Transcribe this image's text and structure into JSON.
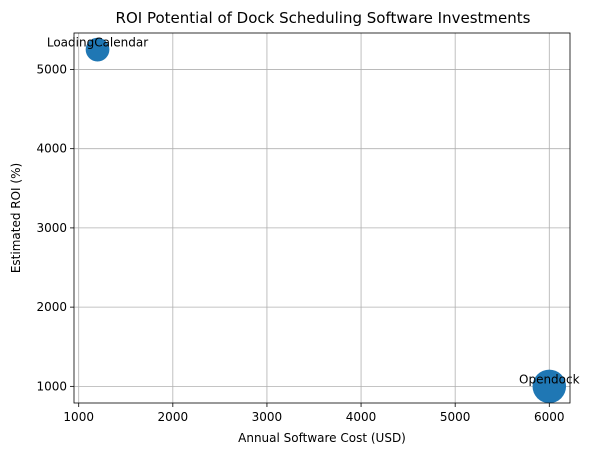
{
  "chart_data": {
    "type": "scatter",
    "title": "ROI Potential of Dock Scheduling Software Investments",
    "xlabel": "Annual Software Cost (USD)",
    "ylabel": "Estimated ROI (%)",
    "xlim": [
      950,
      6220
    ],
    "ylim": [
      790,
      5460
    ],
    "xticks": [
      1000,
      2000,
      3000,
      4000,
      5000,
      6000
    ],
    "yticks": [
      1000,
      2000,
      3000,
      4000,
      5000
    ],
    "grid": true,
    "marker_color": "#1f77b4",
    "points": [
      {
        "label": "LoadingCalendar",
        "x": 1200,
        "y": 5250,
        "size": 250
      },
      {
        "label": "Opendock",
        "x": 6000,
        "y": 1000,
        "size": 500
      }
    ]
  }
}
